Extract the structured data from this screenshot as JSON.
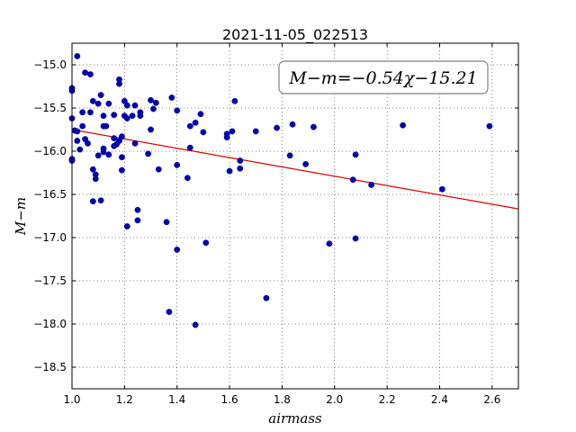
{
  "chart_data": {
    "type": "scatter",
    "title": "2021-11-05_022513",
    "xlabel": "airmass",
    "ylabel": "M−m",
    "xlim": [
      1.0,
      2.7
    ],
    "ylim": [
      -18.75,
      -14.75
    ],
    "y_inverted": true,
    "xticks": [
      1.0,
      1.2,
      1.4,
      1.6,
      1.8,
      2.0,
      2.2,
      2.4,
      2.6
    ],
    "xtick_labels": [
      "1.0",
      "1.2",
      "1.4",
      "1.6",
      "1.8",
      "2.0",
      "2.2",
      "2.4",
      "2.6"
    ],
    "yticks": [
      -15.0,
      -15.5,
      -16.0,
      -16.5,
      -17.0,
      -17.5,
      -18.0,
      -18.5
    ],
    "ytick_labels": [
      "−15.0",
      "−15.5",
      "−16.0",
      "−16.5",
      "−17.0",
      "−17.5",
      "−18.0",
      "−18.5"
    ],
    "grid": true,
    "annotation": "M−m=−0.54χ−15.21",
    "fit": {
      "slope": -0.54,
      "intercept": -15.21,
      "color": "#dd0000"
    },
    "point_color": "#0000b8",
    "points": [
      [
        1.0,
        -15.62
      ],
      [
        1.0,
        -16.09
      ],
      [
        1.0,
        -16.11
      ],
      [
        1.0,
        -15.27
      ],
      [
        1.0,
        -15.3
      ],
      [
        1.02,
        -14.9
      ],
      [
        1.01,
        -15.76
      ],
      [
        1.02,
        -15.77
      ],
      [
        1.02,
        -15.88
      ],
      [
        1.03,
        -15.98
      ],
      [
        1.04,
        -15.71
      ],
      [
        1.04,
        -15.55
      ],
      [
        1.05,
        -15.09
      ],
      [
        1.05,
        -15.86
      ],
      [
        1.06,
        -15.91
      ],
      [
        1.07,
        -15.11
      ],
      [
        1.07,
        -15.55
      ],
      [
        1.08,
        -15.42
      ],
      [
        1.08,
        -16.21
      ],
      [
        1.08,
        -16.58
      ],
      [
        1.09,
        -16.27
      ],
      [
        1.09,
        -16.32
      ],
      [
        1.1,
        -15.45
      ],
      [
        1.1,
        -16.05
      ],
      [
        1.11,
        -16.57
      ],
      [
        1.11,
        -15.35
      ],
      [
        1.12,
        -15.59
      ],
      [
        1.12,
        -15.71
      ],
      [
        1.12,
        -15.97
      ],
      [
        1.12,
        -16.01
      ],
      [
        1.13,
        -15.71
      ],
      [
        1.14,
        -15.45
      ],
      [
        1.14,
        -16.04
      ],
      [
        1.16,
        -15.58
      ],
      [
        1.16,
        -15.85
      ],
      [
        1.16,
        -15.94
      ],
      [
        1.17,
        -15.92
      ],
      [
        1.18,
        -15.17
      ],
      [
        1.18,
        -15.22
      ],
      [
        1.18,
        -15.88
      ],
      [
        1.19,
        -15.83
      ],
      [
        1.19,
        -16.07
      ],
      [
        1.19,
        -16.22
      ],
      [
        1.2,
        -15.42
      ],
      [
        1.2,
        -15.59
      ],
      [
        1.21,
        -15.47
      ],
      [
        1.21,
        -15.62
      ],
      [
        1.21,
        -16.87
      ],
      [
        1.23,
        -15.59
      ],
      [
        1.24,
        -15.47
      ],
      [
        1.24,
        -15.91
      ],
      [
        1.25,
        -16.68
      ],
      [
        1.25,
        -16.8
      ],
      [
        1.26,
        -15.55
      ],
      [
        1.26,
        -15.59
      ],
      [
        1.29,
        -16.03
      ],
      [
        1.3,
        -15.75
      ],
      [
        1.3,
        -15.41
      ],
      [
        1.31,
        -15.51
      ],
      [
        1.32,
        -15.44
      ],
      [
        1.33,
        -16.21
      ],
      [
        1.36,
        -16.82
      ],
      [
        1.37,
        -17.86
      ],
      [
        1.38,
        -15.38
      ],
      [
        1.4,
        -15.53
      ],
      [
        1.4,
        -16.16
      ],
      [
        1.4,
        -17.14
      ],
      [
        1.44,
        -16.31
      ],
      [
        1.45,
        -15.96
      ],
      [
        1.45,
        -15.71
      ],
      [
        1.47,
        -15.67
      ],
      [
        1.47,
        -18.01
      ],
      [
        1.49,
        -15.57
      ],
      [
        1.5,
        -15.78
      ],
      [
        1.51,
        -17.06
      ],
      [
        1.59,
        -15.8
      ],
      [
        1.59,
        -15.84
      ],
      [
        1.6,
        -16.23
      ],
      [
        1.61,
        -15.77
      ],
      [
        1.62,
        -15.42
      ],
      [
        1.64,
        -16.2
      ],
      [
        1.64,
        -16.11
      ],
      [
        1.7,
        -15.77
      ],
      [
        1.74,
        -17.7
      ],
      [
        1.78,
        -15.73
      ],
      [
        1.83,
        -16.05
      ],
      [
        1.84,
        -15.69
      ],
      [
        1.89,
        -16.15
      ],
      [
        1.92,
        -15.72
      ],
      [
        1.98,
        -17.07
      ],
      [
        2.07,
        -16.33
      ],
      [
        2.08,
        -16.04
      ],
      [
        2.08,
        -17.01
      ],
      [
        2.14,
        -16.39
      ],
      [
        2.26,
        -15.7
      ],
      [
        2.41,
        -16.44
      ],
      [
        2.59,
        -15.71
      ]
    ]
  }
}
